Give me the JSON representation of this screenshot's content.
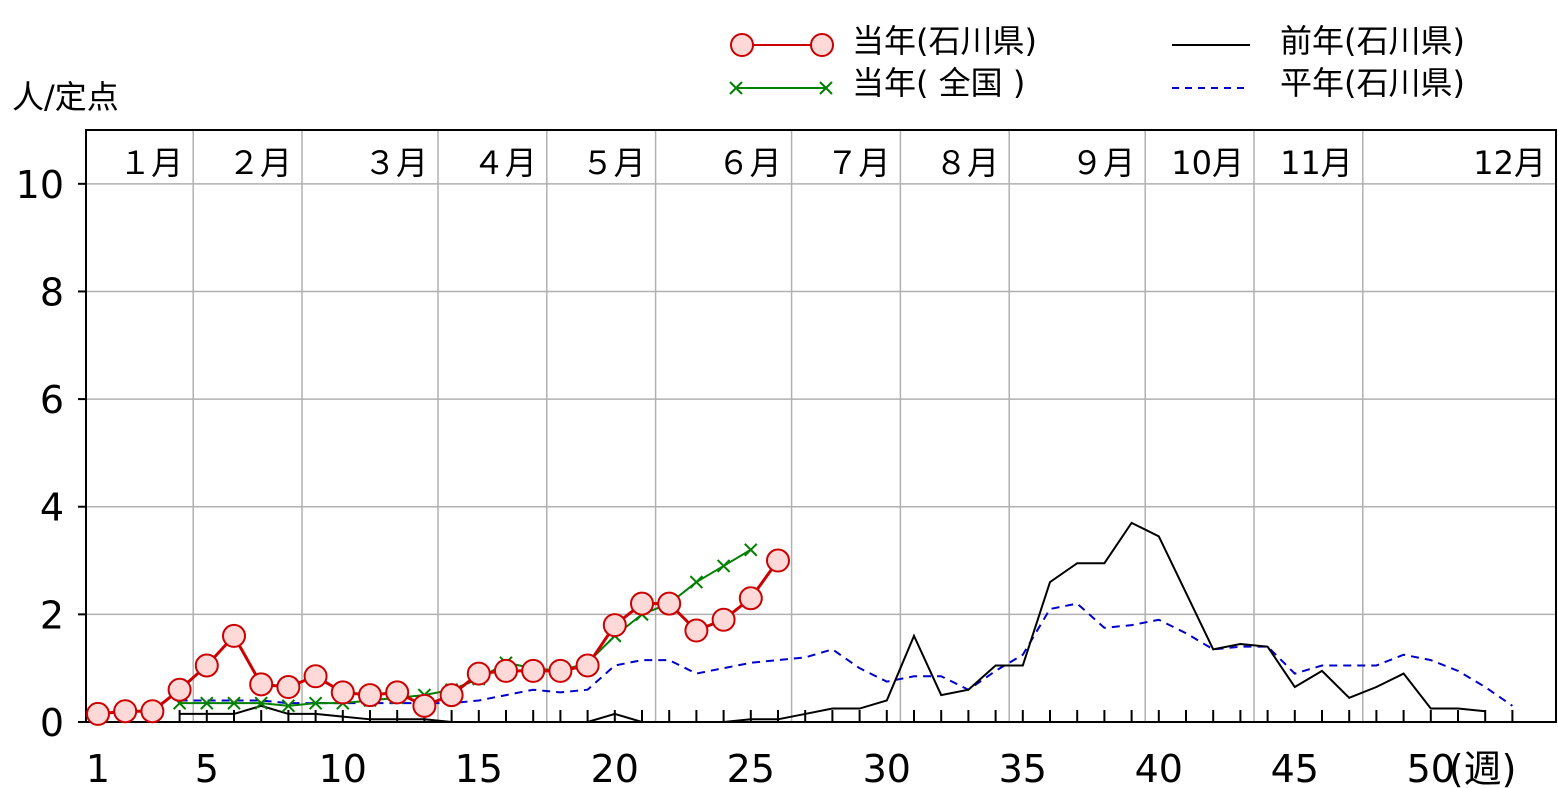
{
  "chart_data": {
    "type": "line",
    "ylabel": "人/定点",
    "xlabel_suffix": "(週)",
    "xlim": [
      1,
      53
    ],
    "ylim": [
      0,
      11
    ],
    "y_ticks": [
      "0",
      "2",
      "4",
      "6",
      "8",
      "10"
    ],
    "y_tick_values": [
      0,
      2,
      4,
      6,
      8,
      10
    ],
    "x_ticks": [
      "1",
      "5",
      "10",
      "15",
      "20",
      "25",
      "30",
      "35",
      "40",
      "45",
      "50"
    ],
    "x_tick_values": [
      1,
      5,
      10,
      15,
      20,
      25,
      30,
      35,
      40,
      45,
      50
    ],
    "grid": true,
    "months": [
      {
        "label": "１月",
        "start": 1,
        "end": 5
      },
      {
        "label": "２月",
        "start": 5,
        "end": 9
      },
      {
        "label": "３月",
        "start": 9,
        "end": 14
      },
      {
        "label": "４月",
        "start": 14,
        "end": 18
      },
      {
        "label": "５月",
        "start": 18,
        "end": 22
      },
      {
        "label": "６月",
        "start": 22,
        "end": 27
      },
      {
        "label": "７月",
        "start": 27,
        "end": 31
      },
      {
        "label": "８月",
        "start": 31,
        "end": 35
      },
      {
        "label": "９月",
        "start": 35,
        "end": 40
      },
      {
        "label": "10月",
        "start": 40,
        "end": 44
      },
      {
        "label": "11月",
        "start": 44,
        "end": 48
      },
      {
        "label": "12月",
        "start": 48,
        "end": 53
      }
    ],
    "legend": {
      "position": "top-right",
      "entries": [
        "当年(石川県)",
        "当年( 全国 )",
        "前年(石川県)",
        "平年(石川県)"
      ]
    },
    "series": [
      {
        "name": "当年(石川県)",
        "color": "#cc0000",
        "marker": "circle",
        "x": [
          1,
          2,
          3,
          4,
          5,
          6,
          7,
          8,
          9,
          10,
          11,
          12,
          13,
          14,
          15,
          16,
          17,
          18,
          19,
          20,
          21,
          22,
          23,
          24,
          25,
          26
        ],
        "values": [
          0.15,
          0.2,
          0.2,
          0.6,
          1.05,
          1.6,
          0.7,
          0.65,
          0.85,
          0.55,
          0.5,
          0.55,
          0.3,
          0.5,
          0.9,
          0.95,
          0.95,
          0.95,
          1.05,
          1.8,
          2.2,
          2.2,
          1.7,
          1.9,
          2.3,
          3.0
        ]
      },
      {
        "name": "当年( 全国 )",
        "color": "#008000",
        "marker": "x",
        "x": [
          4,
          5,
          6,
          7,
          8,
          9,
          10,
          11,
          12,
          13,
          14,
          15,
          16,
          17,
          18,
          19,
          20,
          21,
          22,
          23,
          24,
          25
        ],
        "values": [
          0.35,
          0.35,
          0.35,
          0.35,
          0.3,
          0.35,
          0.35,
          0.4,
          0.45,
          0.5,
          0.6,
          0.8,
          1.1,
          1.0,
          0.95,
          1.1,
          1.6,
          2.0,
          2.2,
          2.6,
          2.9,
          3.2
        ]
      },
      {
        "name": "前年(石川県)",
        "color": "#000000",
        "marker": "none",
        "x": [
          4,
          5,
          6,
          7,
          8,
          9,
          10,
          11,
          12,
          13,
          14,
          15,
          16,
          17,
          18,
          19,
          20,
          21,
          22,
          23,
          24,
          25,
          26,
          27,
          28,
          29,
          30,
          31,
          32,
          33,
          34,
          35,
          36,
          37,
          38,
          39,
          40,
          41,
          42,
          43,
          44,
          45,
          46,
          47,
          48,
          49,
          50,
          51,
          52
        ],
        "values": [
          0.15,
          0.15,
          0.15,
          0.3,
          0.15,
          0.15,
          0.1,
          0.05,
          0.05,
          0.05,
          0.0,
          0.0,
          0.0,
          0.0,
          0.0,
          0.0,
          0.15,
          0.0,
          0.0,
          0.0,
          0.0,
          0.05,
          0.05,
          0.15,
          0.25,
          0.25,
          0.4,
          1.6,
          0.5,
          0.6,
          1.05,
          1.05,
          2.6,
          2.95,
          2.95,
          3.7,
          3.45,
          2.4,
          1.35,
          1.45,
          1.4,
          0.65,
          0.95,
          0.45,
          0.65,
          0.9,
          0.25,
          0.25,
          0.2
        ]
      },
      {
        "name": "平年(石川県)",
        "color": "#0000cc",
        "marker": "none",
        "x": [
          4,
          5,
          6,
          7,
          8,
          9,
          10,
          11,
          12,
          13,
          14,
          15,
          16,
          17,
          18,
          19,
          20,
          21,
          22,
          23,
          24,
          25,
          26,
          27,
          28,
          29,
          30,
          31,
          32,
          33,
          34,
          35,
          36,
          37,
          38,
          39,
          40,
          41,
          42,
          43,
          44,
          45,
          46,
          47,
          48,
          49,
          50,
          51,
          52,
          53
        ],
        "values": [
          0.4,
          0.4,
          0.4,
          0.4,
          0.35,
          0.35,
          0.35,
          0.35,
          0.35,
          0.35,
          0.35,
          0.4,
          0.5,
          0.6,
          0.55,
          0.6,
          1.05,
          1.15,
          1.15,
          0.9,
          1.0,
          1.1,
          1.15,
          1.2,
          1.35,
          1.0,
          0.75,
          0.85,
          0.85,
          0.6,
          0.95,
          1.25,
          2.1,
          2.2,
          1.75,
          1.8,
          1.9,
          1.65,
          1.35,
          1.4,
          1.4,
          0.9,
          1.05,
          1.05,
          1.05,
          1.25,
          1.15,
          0.95,
          0.65,
          0.3
        ]
      }
    ]
  }
}
